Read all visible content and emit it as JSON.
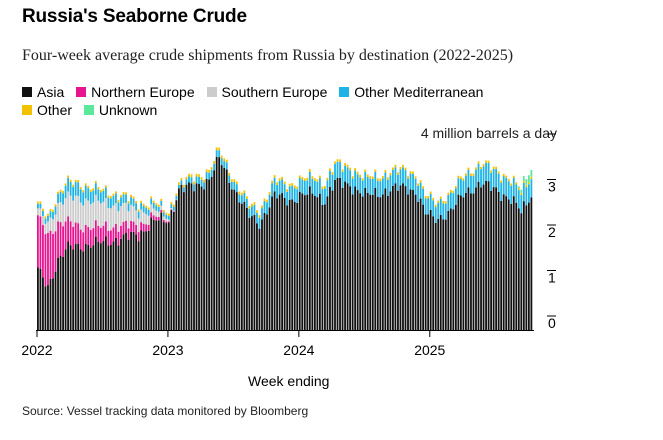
{
  "title": "Russia's Seaborne Crude",
  "subtitle": "Four-week average crude shipments from Russia by destination (2022-2025)",
  "legend": [
    {
      "name": "Asia",
      "color": "#111111"
    },
    {
      "name": "Northern Europe",
      "color": "#e6158f"
    },
    {
      "name": "Southern Europe",
      "color": "#cccccc"
    },
    {
      "name": "Other Mediterranean",
      "color": "#1fb3e5"
    },
    {
      "name": "Other",
      "color": "#f2c200"
    },
    {
      "name": "Unknown",
      "color": "#5ce89a"
    }
  ],
  "unit_label": "4 million barrels a day",
  "xlabel": "Week ending",
  "source": "Source: Vessel tracking data monitored by Bloomberg",
  "chart_data": {
    "type": "bar",
    "stacked": true,
    "xlabel": "Week ending",
    "ylabel": "",
    "ylim": [
      0,
      4
    ],
    "yticks": [
      "0",
      "1",
      "2",
      "3"
    ],
    "xticks": [
      "2022",
      "2023",
      "2024",
      "2025"
    ],
    "grid": false,
    "legend_position": "top",
    "weeks_per_year": 52,
    "series": [
      {
        "name": "Asia",
        "color": "#111111",
        "keyframes": [
          [
            0,
            1.3
          ],
          [
            4,
            0.95
          ],
          [
            8,
            1.55
          ],
          [
            12,
            1.8
          ],
          [
            16,
            1.85
          ],
          [
            24,
            1.9
          ],
          [
            32,
            2.0
          ],
          [
            40,
            2.1
          ],
          [
            46,
            2.4
          ],
          [
            52,
            2.4
          ],
          [
            56,
            3.1
          ],
          [
            62,
            3.15
          ],
          [
            68,
            3.3
          ],
          [
            72,
            3.75
          ],
          [
            74,
            3.55
          ],
          [
            78,
            3.1
          ],
          [
            84,
            2.5
          ],
          [
            88,
            2.35
          ],
          [
            94,
            2.95
          ],
          [
            100,
            2.85
          ],
          [
            104,
            2.95
          ],
          [
            110,
            3.0
          ],
          [
            114,
            2.85
          ],
          [
            118,
            3.25
          ],
          [
            124,
            3.2
          ],
          [
            130,
            2.95
          ],
          [
            138,
            3.05
          ],
          [
            146,
            3.15
          ],
          [
            150,
            3.05
          ],
          [
            154,
            2.55
          ],
          [
            158,
            2.45
          ],
          [
            164,
            2.6
          ],
          [
            170,
            3.05
          ],
          [
            176,
            3.2
          ],
          [
            182,
            3.1
          ],
          [
            188,
            2.85
          ],
          [
            192,
            2.6
          ],
          [
            196,
            3.0
          ],
          [
            197,
            3.05
          ]
        ]
      },
      {
        "name": "Northern Europe",
        "color": "#e6158f",
        "keyframes": [
          [
            0,
            1.15
          ],
          [
            4,
            1.15
          ],
          [
            8,
            0.8
          ],
          [
            12,
            0.55
          ],
          [
            16,
            0.45
          ],
          [
            24,
            0.35
          ],
          [
            32,
            0.3
          ],
          [
            40,
            0.2
          ],
          [
            46,
            0.1
          ],
          [
            52,
            0.02
          ],
          [
            56,
            0
          ],
          [
            197,
            0
          ]
        ]
      },
      {
        "name": "Southern Europe",
        "color": "#cccccc",
        "keyframes": [
          [
            0,
            0.15
          ],
          [
            4,
            0.25
          ],
          [
            8,
            0.4
          ],
          [
            12,
            0.55
          ],
          [
            16,
            0.6
          ],
          [
            24,
            0.55
          ],
          [
            32,
            0.45
          ],
          [
            40,
            0.3
          ],
          [
            46,
            0.15
          ],
          [
            52,
            0.04
          ],
          [
            56,
            0
          ],
          [
            197,
            0
          ]
        ]
      },
      {
        "name": "Other Mediterranean",
        "color": "#1fb3e5",
        "keyframes": [
          [
            0,
            0.1
          ],
          [
            4,
            0.12
          ],
          [
            8,
            0.2
          ],
          [
            12,
            0.3
          ],
          [
            16,
            0.3
          ],
          [
            24,
            0.25
          ],
          [
            32,
            0.2
          ],
          [
            40,
            0.15
          ],
          [
            46,
            0.12
          ],
          [
            52,
            0.08
          ],
          [
            56,
            0.08
          ],
          [
            62,
            0.15
          ],
          [
            68,
            0.15
          ],
          [
            74,
            0.15
          ],
          [
            84,
            0.2
          ],
          [
            94,
            0.3
          ],
          [
            104,
            0.3
          ],
          [
            114,
            0.35
          ],
          [
            124,
            0.35
          ],
          [
            138,
            0.35
          ],
          [
            150,
            0.35
          ],
          [
            154,
            0.35
          ],
          [
            164,
            0.35
          ],
          [
            176,
            0.4
          ],
          [
            188,
            0.4
          ],
          [
            196,
            0.4
          ],
          [
            197,
            0.4
          ]
        ]
      },
      {
        "name": "Other",
        "color": "#f2c200",
        "keyframes": [
          [
            0,
            0.05
          ],
          [
            52,
            0.05
          ],
          [
            60,
            0.06
          ],
          [
            197,
            0.05
          ]
        ]
      },
      {
        "name": "Unknown",
        "color": "#5ce89a",
        "keyframes": [
          [
            0,
            0
          ],
          [
            190,
            0
          ],
          [
            193,
            0.1
          ],
          [
            195,
            0.15
          ],
          [
            197,
            0.15
          ]
        ]
      }
    ]
  }
}
